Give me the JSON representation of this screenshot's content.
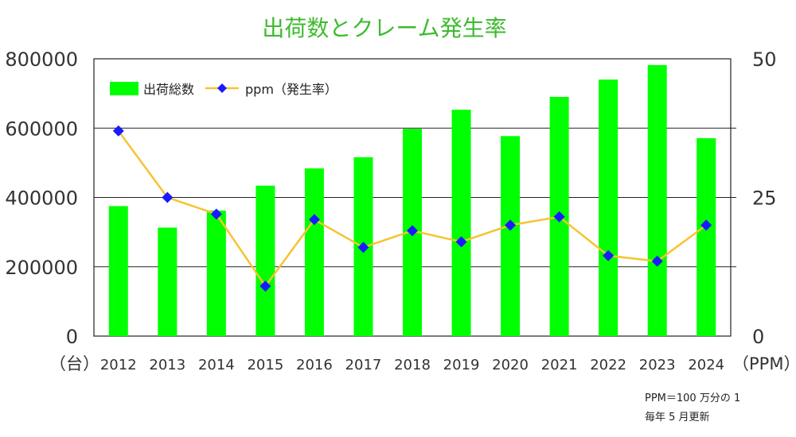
{
  "title": "出荷数とクレーム発生率",
  "notes": [
    "PPM＝100 万分の 1",
    "毎年 5 月更新"
  ],
  "chart_data": {
    "type": "bar",
    "categories": [
      "2012",
      "2013",
      "2014",
      "2015",
      "2016",
      "2017",
      "2018",
      "2019",
      "2020",
      "2021",
      "2022",
      "2023",
      "2024"
    ],
    "series": [
      {
        "name": "出荷総数",
        "type": "bar",
        "axis": "left",
        "values": [
          375000,
          313000,
          362000,
          434000,
          484000,
          516000,
          598000,
          653000,
          577000,
          690000,
          740000,
          782000,
          571000
        ]
      },
      {
        "name": "ppm（発生率）",
        "type": "line",
        "axis": "right",
        "values": [
          37,
          25,
          22,
          9,
          21,
          16,
          19,
          17,
          20,
          21.5,
          14.5,
          13.5,
          20
        ]
      }
    ],
    "y_left": {
      "min": 0,
      "max": 800000,
      "ticks": [
        "0",
        "200000",
        "400000",
        "600000",
        "800000"
      ],
      "unit": "（台）"
    },
    "y_right": {
      "min": 0,
      "max": 50,
      "ticks": [
        "0",
        "25",
        "50"
      ],
      "unit": "（PPM）"
    },
    "colors": {
      "bar": "#00ff00",
      "line": "#f5c431",
      "marker": "#1a1aff",
      "title": "#3dbb2e"
    },
    "legend": "top-left",
    "grid": true
  }
}
